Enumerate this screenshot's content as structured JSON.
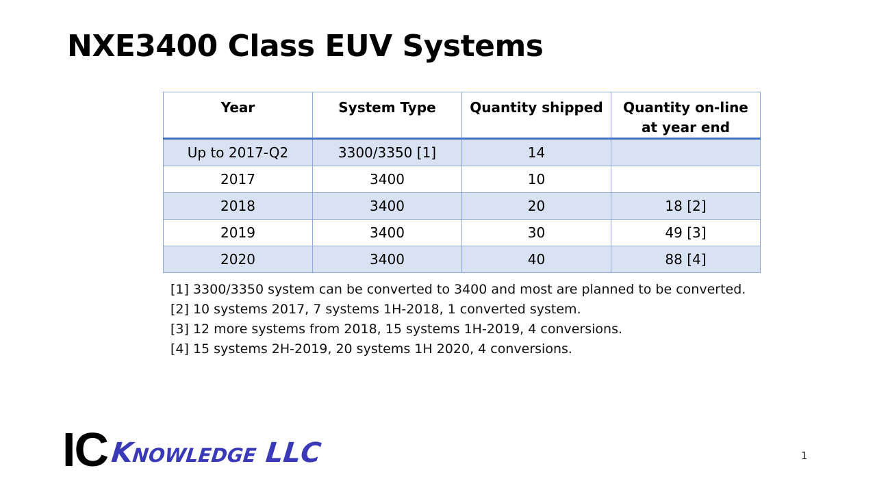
{
  "title": "NXE3400 Class EUV Systems",
  "table": {
    "headers": [
      "Year",
      "System Type",
      "Quantity shipped",
      "Quantity on-line at year end"
    ],
    "rows": [
      [
        "Up to 2017-Q2",
        "3300/3350 [1]",
        "14",
        ""
      ],
      [
        "2017",
        "3400",
        "10",
        ""
      ],
      [
        "2018",
        "3400",
        "20",
        "18 [2]"
      ],
      [
        "2019",
        "3400",
        "30",
        "49 [3]"
      ],
      [
        "2020",
        "3400",
        "40",
        "88 [4]"
      ]
    ]
  },
  "notes": [
    "[1] 3300/3350 system can be converted to 3400 and most are planned to be converted.",
    "[2] 10 systems 2017, 7 systems 1H-2018, 1 converted system.",
    "[3] 12 more systems from 2018, 15 systems 1H-2019, 4 conversions.",
    "[4] 15 systems 2H-2019, 20 systems 1H 2020, 4 conversions."
  ],
  "logo": {
    "ic": "IC",
    "knowledge": "Knowledge LLC",
    "color": "#3a3ab8"
  },
  "page_number": "1",
  "colors": {
    "header_rule": "#4472c4",
    "row_shade": "#d9e2f3",
    "border": "#8eaadb"
  }
}
